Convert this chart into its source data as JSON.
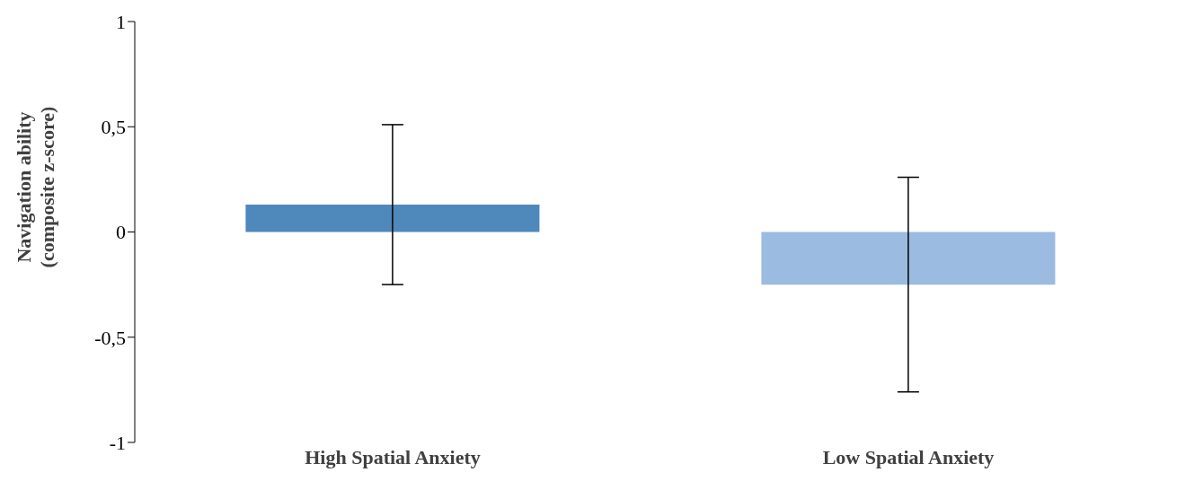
{
  "chart_data": {
    "type": "bar",
    "ylabel": "Navigation ability\n(composite z-score)",
    "categories": [
      "High Spatial Anxiety",
      "Low Spatial Anxiety"
    ],
    "colors": [
      "#4f88bb",
      "#9bbbe0"
    ],
    "values": [
      0.13,
      -0.25
    ],
    "errors": [
      0.38,
      0.51
    ],
    "ylim": [
      -1,
      1
    ],
    "yticks": [
      -1,
      {
        "value": -0.5,
        "label": "-0,5"
      },
      0,
      {
        "value": 0.5,
        "label": "0,5"
      },
      1
    ],
    "grid": false
  }
}
